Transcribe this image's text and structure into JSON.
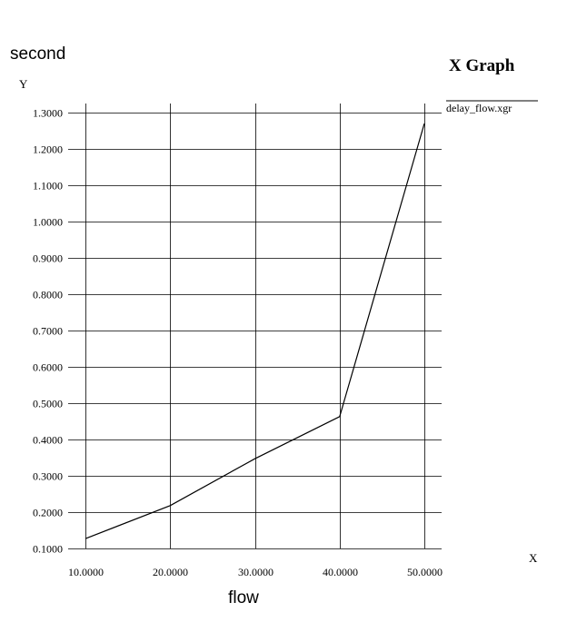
{
  "chart_data": {
    "type": "line",
    "title": "X Graph",
    "xlabel": "flow",
    "ylabel": "second",
    "x_axis_name": "X",
    "y_axis_name": "Y",
    "xlim": [
      10,
      50
    ],
    "ylim": [
      0.1,
      1.3
    ],
    "x_ticks": [
      10,
      20,
      30,
      40,
      50
    ],
    "x_tick_labels": [
      "10.0000",
      "20.0000",
      "30.0000",
      "40.0000",
      "50.0000"
    ],
    "y_ticks": [
      0.1,
      0.2,
      0.3,
      0.4,
      0.5,
      0.6,
      0.7,
      0.8,
      0.9,
      1.0,
      1.1,
      1.2,
      1.3
    ],
    "y_tick_labels": [
      "0.1000",
      "0.2000",
      "0.3000",
      "0.4000",
      "0.5000",
      "0.6000",
      "0.7000",
      "0.8000",
      "0.9000",
      "1.0000",
      "1.1000",
      "1.2000",
      "1.3000"
    ],
    "grid": true,
    "legend_position": "top-right",
    "series": [
      {
        "name": "delay_flow.xgr",
        "color": "#000000",
        "x": [
          10,
          20,
          30,
          40,
          50
        ],
        "y": [
          0.127,
          0.218,
          0.347,
          0.463,
          1.27
        ]
      }
    ]
  }
}
